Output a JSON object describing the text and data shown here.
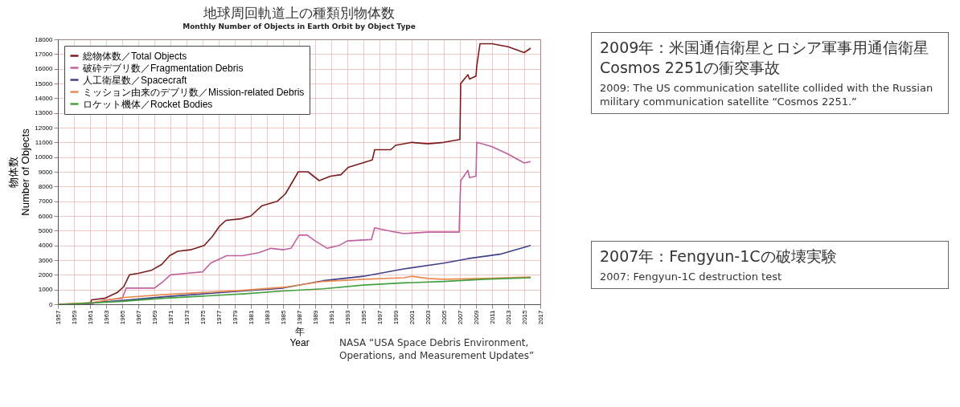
{
  "chart_data": {
    "type": "line",
    "title": "地球周回軌道上の種類別物体数",
    "subtitle": "Monthly Number of Objects in Earth Orbit by Object Type",
    "xlabel": "年\nYear",
    "ylabel": "物体数\nNumber of Objects",
    "xlim": [
      1957,
      2017
    ],
    "xticks": [
      1957,
      1959,
      1961,
      1963,
      1965,
      1967,
      1969,
      1971,
      1973,
      1975,
      1977,
      1979,
      1981,
      1983,
      1985,
      1987,
      1989,
      1991,
      1993,
      1995,
      1997,
      1999,
      2001,
      2003,
      2005,
      2007,
      2009,
      2011,
      2013,
      2015,
      2017
    ],
    "ylim": [
      0,
      18000
    ],
    "yticks": [
      0,
      1000,
      2000,
      3000,
      4000,
      5000,
      6000,
      7000,
      8000,
      9000,
      10000,
      11000,
      12000,
      13000,
      14000,
      15000,
      16000,
      17000,
      18000
    ],
    "grid": true,
    "legend": "top left",
    "series": [
      {
        "name": "総物体数／Total Objects",
        "color": "#7b1c1c",
        "x": [
          1957,
          1961,
          1961.2,
          1962.8,
          1964.4,
          1965.2,
          1965.9,
          1967,
          1968.6,
          1969.9,
          1970.9,
          1971.9,
          1973.5,
          1975.2,
          1976.2,
          1977.1,
          1977.9,
          1979.7,
          1981,
          1982.4,
          1984.3,
          1985.3,
          1986.9,
          1988.1,
          1989.5,
          1990.9,
          1992.2,
          1993.1,
          1996.1,
          1996.4,
          1998.4,
          1999,
          2001,
          2003,
          2005,
          2007,
          2007.1,
          2008,
          2008.2,
          2009,
          2009.1,
          2009.5,
          2011,
          2013,
          2015,
          2015.8
        ],
        "values": [
          0,
          0,
          300,
          400,
          800,
          1200,
          2000,
          2100,
          2300,
          2700,
          3300,
          3600,
          3700,
          4000,
          4600,
          5300,
          5700,
          5800,
          6000,
          6700,
          7000,
          7500,
          9000,
          9000,
          8400,
          8700,
          8800,
          9300,
          9800,
          10500,
          10500,
          10800,
          11000,
          10900,
          11000,
          11200,
          15000,
          15600,
          15300,
          15500,
          16200,
          17700,
          17700,
          17500,
          17100,
          17400
        ]
      },
      {
        "name": "破砕デブリ数／Fragmentation Debris",
        "color": "#c060a0",
        "x": [
          1957,
          1961,
          1963,
          1965,
          1965.5,
          1969,
          1970,
          1971,
          1973,
          1975,
          1976,
          1978,
          1980,
          1982,
          1983.5,
          1985,
          1986,
          1987,
          1988,
          1989,
          1990.5,
          1992,
          1993,
          1996,
          1996.4,
          1998,
          2000,
          2003,
          2006.9,
          2007.1,
          2008,
          2008.2,
          2009,
          2009.1,
          2011,
          2013,
          2015,
          2015.8
        ],
        "values": [
          0,
          0,
          300,
          400,
          1100,
          1100,
          1500,
          2000,
          2100,
          2200,
          2800,
          3300,
          3300,
          3500,
          3800,
          3700,
          3800,
          4700,
          4700,
          4300,
          3800,
          4000,
          4300,
          4400,
          5200,
          5000,
          4800,
          4900,
          4900,
          8400,
          9100,
          8600,
          8700,
          11000,
          10700,
          10200,
          9600,
          9700
        ]
      },
      {
        "name": "人工衛星数／Spacecraft",
        "color": "#40408a",
        "x": [
          1957,
          1960,
          1965,
          1970,
          1975,
          1980,
          1985,
          1990,
          1995,
          2000,
          2005,
          2008,
          2012,
          2015.8
        ],
        "values": [
          0,
          50,
          250,
          500,
          700,
          900,
          1100,
          1600,
          1900,
          2400,
          2800,
          3100,
          3400,
          4000
        ]
      },
      {
        "name": "ミッション由来のデブリ数／Mission-related Debris",
        "color": "#e88a50",
        "x": [
          1957,
          1961,
          1965,
          1970,
          1975,
          1980,
          1985,
          1990,
          1995,
          2000,
          2001,
          2003,
          2005,
          2010,
          2015.8
        ],
        "values": [
          0,
          100,
          450,
          650,
          800,
          950,
          1150,
          1550,
          1700,
          1800,
          1900,
          1750,
          1700,
          1750,
          1850
        ]
      },
      {
        "name": "ロケット機体／Rocket Bodies",
        "color": "#40a040",
        "x": [
          1957,
          1958,
          1965,
          1970,
          1975,
          1980,
          1985,
          1990,
          1995,
          2000,
          2005,
          2010,
          2015.8
        ],
        "values": [
          0,
          0,
          200,
          400,
          550,
          700,
          900,
          1050,
          1300,
          1450,
          1550,
          1700,
          1800
        ]
      }
    ],
    "annotations": [
      "2009年：米国通信衛星とロシア軍事用通信衛星Cosmos 2251の衝突事故\n2009: The US communication satellite collided with the Russian military communication satellite “Cosmos 2251.”",
      "2007年：Fengyun-1Cの破壊実験\n2007: Fengyun-1C destruction test",
      "NASA “USA Space Debris Environment, Operations, and Measurement Updates”"
    ]
  }
}
